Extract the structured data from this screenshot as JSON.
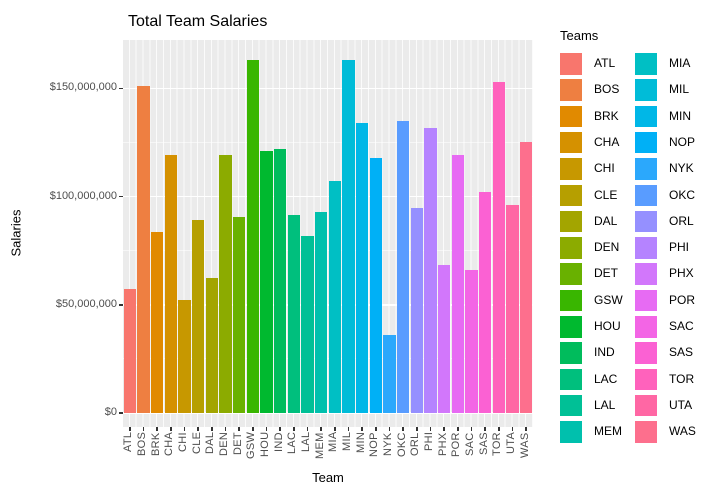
{
  "title": "Total Team Salaries",
  "axes": {
    "x_title": "Team",
    "y_title": "Salaries",
    "y_tick_labels": [
      "$0",
      "$50,000,000",
      "$100,000,000",
      "$150,000,000"
    ]
  },
  "legend": {
    "title": "Teams",
    "columns": [
      [
        "ATL",
        "BOS",
        "BRK",
        "CHA",
        "CHI",
        "CLE",
        "DAL",
        "DEN",
        "DET",
        "GSW",
        "HOU",
        "IND",
        "LAC",
        "LAL",
        "MEM"
      ],
      [
        "MIA",
        "MIL",
        "MIN",
        "NOP",
        "NYK",
        "OKC",
        "ORL",
        "PHI",
        "PHX",
        "POR",
        "SAC",
        "SAS",
        "TOR",
        "UTA",
        "WAS"
      ]
    ]
  },
  "colors": {
    "background": "#FFFFFF",
    "panel_background": "#EBEBEB",
    "gridline": "#FFFFFF",
    "tick_label": "#4D4D4D",
    "text": "#000000",
    "tick_mark": "#333333"
  },
  "chart_data": {
    "type": "bar",
    "title": "Total Team Salaries",
    "xlabel": "Team",
    "ylabel": "Salaries",
    "categories": [
      "ATL",
      "BOS",
      "BRK",
      "CHA",
      "CHI",
      "CLE",
      "DAL",
      "DEN",
      "DET",
      "GSW",
      "HOU",
      "IND",
      "LAC",
      "LAL",
      "MEM",
      "MIA",
      "MIL",
      "MIN",
      "NOP",
      "NYK",
      "OKC",
      "ORL",
      "PHI",
      "PHX",
      "POR",
      "SAC",
      "SAS",
      "TOR",
      "UTA",
      "WAS"
    ],
    "values": [
      57500000,
      151000000,
      83500000,
      119000000,
      52000000,
      89000000,
      62500000,
      119000000,
      90500000,
      163000000,
      121000000,
      122000000,
      91500000,
      82000000,
      93000000,
      107000000,
      163000000,
      134000000,
      118000000,
      36000000,
      135000000,
      94500000,
      131500000,
      68500000,
      119000000,
      66000000,
      102000000,
      153000000,
      96000000,
      125000000
    ],
    "colors": [
      "#F8766D",
      "#EE7F41",
      "#E18A00",
      "#D59100",
      "#C79800",
      "#B69F00",
      "#A3A500",
      "#8CAB00",
      "#69B100",
      "#39B600",
      "#00B92F",
      "#00BC5C",
      "#00BF7D",
      "#00C096",
      "#00C0AD",
      "#00BFC4",
      "#00BCD8",
      "#00B7E7",
      "#00B0F6",
      "#2BA8FC",
      "#599CFF",
      "#9590FF",
      "#B583FF",
      "#D277FB",
      "#E76BF3",
      "#F365E5",
      "#FB61D3",
      "#FF62BC",
      "#FF67A4",
      "#FD6F8D"
    ],
    "y_ticks": [
      0,
      50000000,
      100000000,
      150000000
    ],
    "y_tick_labels": [
      "$0",
      "$50,000,000",
      "$100,000,000",
      "$150,000,000"
    ],
    "y_minor_ticks": [
      25000000,
      75000000,
      125000000
    ],
    "ylim": [
      0,
      172000000
    ],
    "grid": true,
    "legend_position": "right",
    "legend_title": "Teams"
  }
}
